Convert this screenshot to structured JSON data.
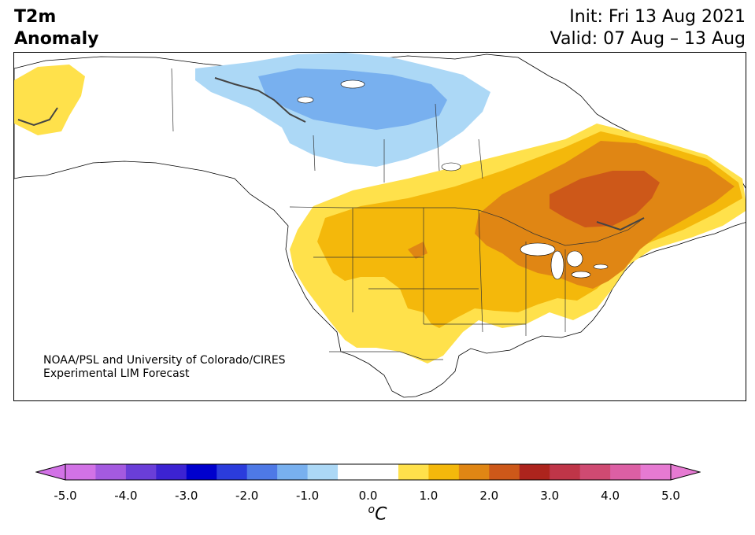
{
  "title": {
    "left_line1": "T2m",
    "left_line2": "Anomaly",
    "right_line1": "Init: Fri 13 Aug 2021",
    "right_line2": "Valid: 07 Aug – 13 Aug"
  },
  "credit": {
    "line1": "NOAA/PSL and University of Colorado/CIRES",
    "line2": "Experimental LIM Forecast"
  },
  "colorbar": {
    "tick_labels": [
      "-5.0",
      "-4.0",
      "-3.0",
      "-2.0",
      "-1.0",
      "0.0",
      "1.0",
      "2.0",
      "3.0",
      "4.0",
      "5.0"
    ],
    "unit_super": "o",
    "unit_main": "C",
    "colors": [
      "#d272e6",
      "#a45ae0",
      "#6a3ed8",
      "#3c23d2",
      "#0000cd",
      "#2b3cdc",
      "#4e79e6",
      "#78b0ef",
      "#acd8f6",
      "#ffffff",
      "#ffffff",
      "#ffe14b",
      "#f4b80b",
      "#e08614",
      "#cd5819",
      "#ad241d",
      "#bf3548",
      "#cf4a72",
      "#dc5fa4",
      "#e67ad2"
    ],
    "under_color": "#d272e6",
    "over_color": "#e67ad2"
  },
  "map_colors": {
    "ocean": "#ffffff",
    "coast": "#000000",
    "borders": "#333333",
    "lightblue": "#acd8f6",
    "midblue": "#78b0ef",
    "yellow": "#ffe14b",
    "gold": "#f4b80b",
    "orange": "#e08614",
    "darkorange": "#cd5819"
  }
}
